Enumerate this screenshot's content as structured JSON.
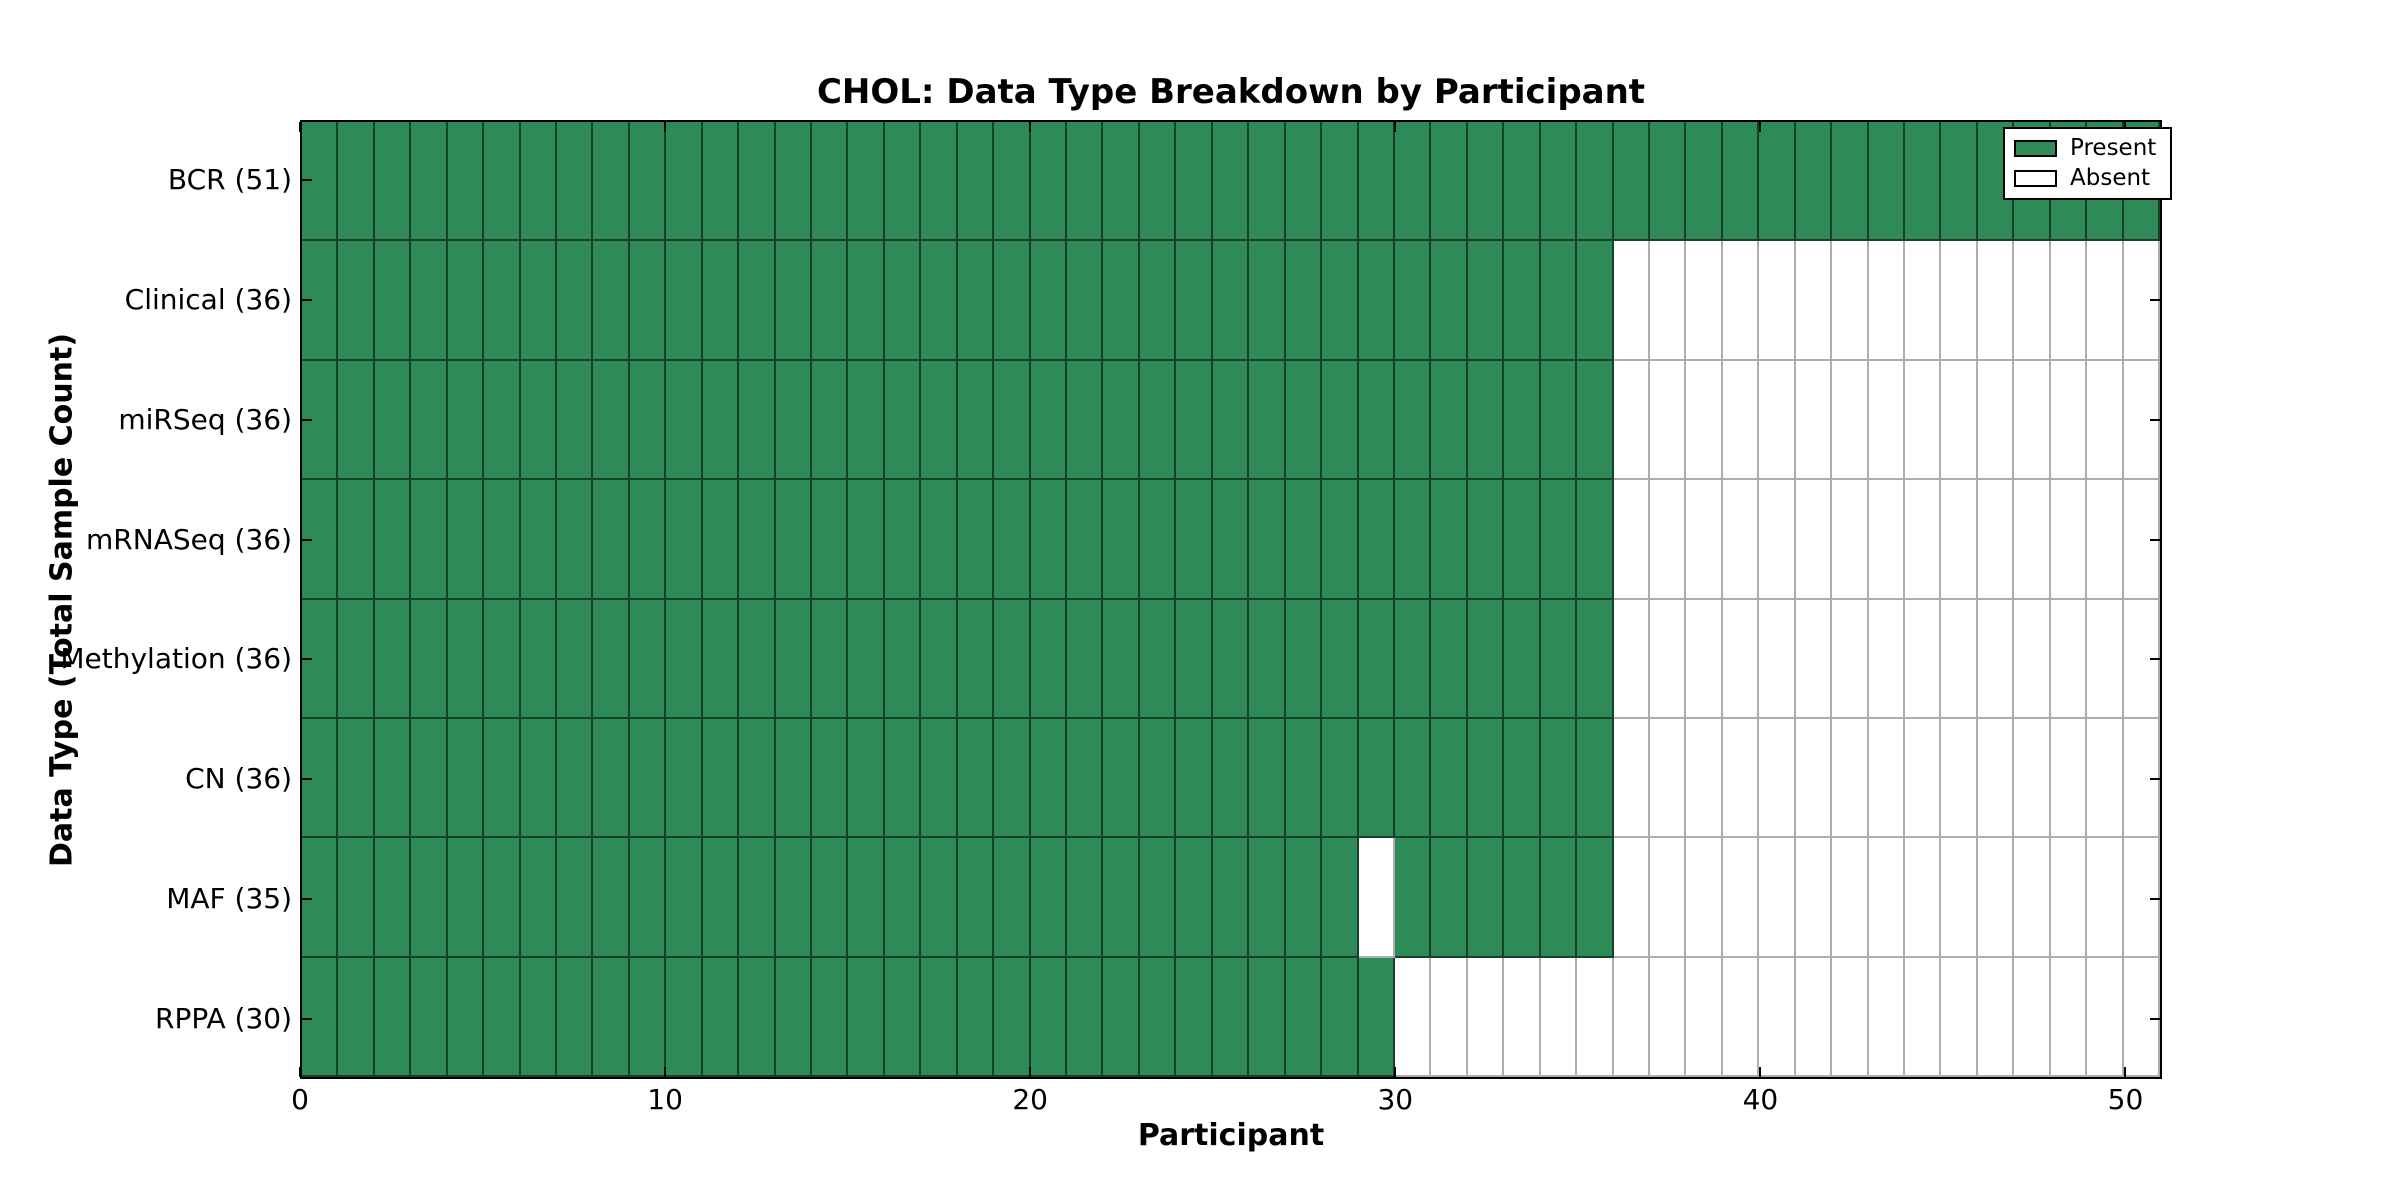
{
  "chart_data": {
    "type": "heatmap",
    "title": "CHOL: Data Type Breakdown by Participant",
    "xlabel": "Participant",
    "ylabel": "Data Type (Total Sample Count)",
    "x_min": 0,
    "x_max": 51,
    "x_ticks": [
      0,
      10,
      20,
      30,
      40,
      50
    ],
    "n_participants": 51,
    "grid": true,
    "legend_position": "upper right",
    "colors": {
      "present": "#2E8B57",
      "absent": "#ffffff",
      "axis": "#000000"
    },
    "legend": [
      {
        "label": "Present",
        "color": "#2E8B57"
      },
      {
        "label": "Absent",
        "color": "#ffffff"
      }
    ],
    "rows": [
      {
        "label": "BCR (51)",
        "data_type": "BCR",
        "total_samples": 51,
        "present_ranges": [
          [
            0,
            51
          ]
        ]
      },
      {
        "label": "Clinical (36)",
        "data_type": "Clinical",
        "total_samples": 36,
        "present_ranges": [
          [
            0,
            36
          ]
        ]
      },
      {
        "label": "miRSeq (36)",
        "data_type": "miRSeq",
        "total_samples": 36,
        "present_ranges": [
          [
            0,
            36
          ]
        ]
      },
      {
        "label": "mRNASeq (36)",
        "data_type": "mRNASeq",
        "total_samples": 36,
        "present_ranges": [
          [
            0,
            36
          ]
        ]
      },
      {
        "label": "Methylation (36)",
        "data_type": "Methylation",
        "total_samples": 36,
        "present_ranges": [
          [
            0,
            36
          ]
        ]
      },
      {
        "label": "CN (36)",
        "data_type": "CN",
        "total_samples": 36,
        "present_ranges": [
          [
            0,
            36
          ]
        ]
      },
      {
        "label": "MAF (35)",
        "data_type": "MAF",
        "total_samples": 35,
        "present_ranges": [
          [
            0,
            29
          ],
          [
            30,
            36
          ]
        ]
      },
      {
        "label": "RPPA (30)",
        "data_type": "RPPA",
        "total_samples": 30,
        "present_ranges": [
          [
            0,
            30
          ]
        ]
      }
    ]
  }
}
